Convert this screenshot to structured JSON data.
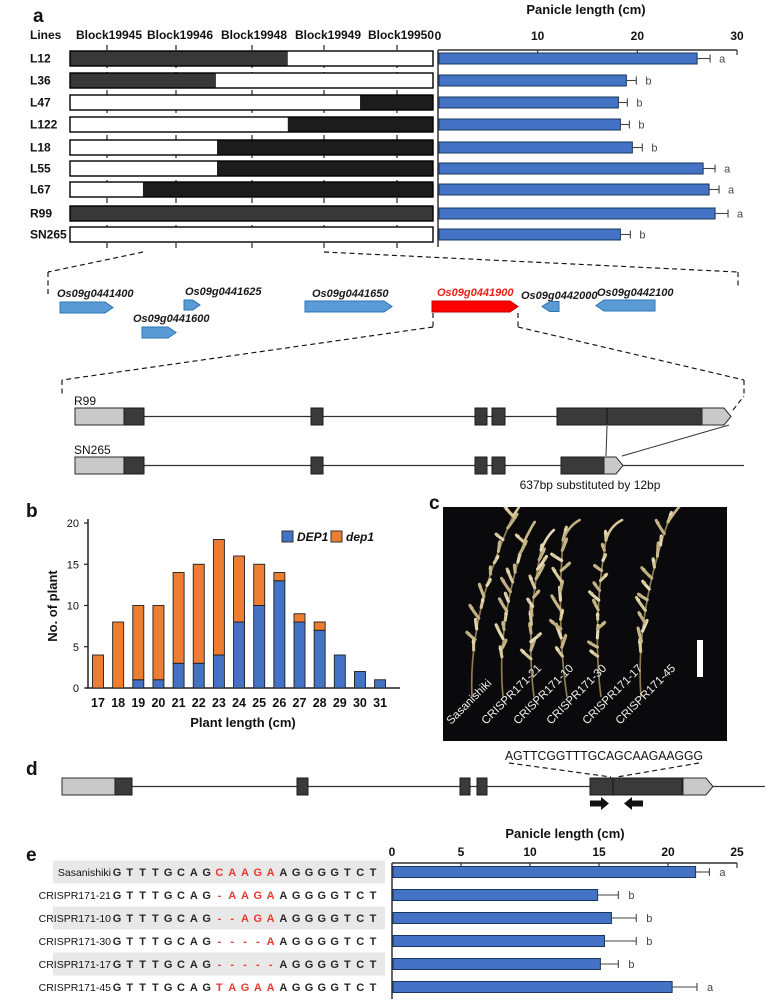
{
  "panels": {
    "a": {
      "label": "a",
      "lines_header": "Lines",
      "blocks": [
        "Block19945",
        "Block19946",
        "Block19948",
        "Block19949",
        "Block19950"
      ],
      "lines": [
        {
          "name": "L12",
          "dark": [
            0,
            0.6
          ],
          "tone": "gray"
        },
        {
          "name": "L36",
          "dark": [
            0,
            0.402
          ],
          "tone": "gray"
        },
        {
          "name": "L47",
          "dark": [
            0.799,
            1
          ],
          "tone": "black"
        },
        {
          "name": "L122",
          "dark": [
            0.6,
            1
          ],
          "tone": "black"
        },
        {
          "name": "L18",
          "dark": [
            0.405,
            1
          ],
          "tone": "black"
        },
        {
          "name": "L55",
          "dark": [
            0.405,
            1
          ],
          "tone": "black"
        },
        {
          "name": "L67",
          "dark": [
            0.201,
            1
          ],
          "tone": "black"
        },
        {
          "name": "R99",
          "dark": [
            0,
            1
          ],
          "tone": "gray"
        },
        {
          "name": "SN265",
          "dark": null,
          "tone": "none"
        }
      ]
    },
    "gene_row": {
      "genes": [
        {
          "id": "Os09g0441400",
          "dir": "right",
          "highlight": false
        },
        {
          "id": "Os09g0441600",
          "dir": "right",
          "highlight": false
        },
        {
          "id": "Os09g0441625",
          "dir": "right",
          "highlight": false
        },
        {
          "id": "Os09g0441650",
          "dir": "right",
          "highlight": false
        },
        {
          "id": "Os09g0441900",
          "dir": "right",
          "highlight": true
        },
        {
          "id": "Os09g0442000",
          "dir": "left",
          "highlight": false
        },
        {
          "id": "Os09g0442100",
          "dir": "left",
          "highlight": false
        }
      ]
    },
    "structures": {
      "r99_label": "R99",
      "sn265_label": "SN265",
      "substitution_note": "637bp substituted by 12bp"
    },
    "b": {
      "label": "b"
    },
    "c": {
      "label": "c",
      "photo_labels": [
        "Sasanishiki",
        "CRISPR171-21",
        "CRISPR171-10",
        "CRISPR171-30",
        "CRISPR171-17",
        "CRISPR171-45"
      ]
    },
    "d": {
      "label": "d",
      "guide_sequence": "AGTTCGGTTTGCAGCAAGAAGGG"
    },
    "e": {
      "label": "e",
      "prefix": "GTTTGCAG",
      "suffix": "AGGGGTCT",
      "rows": [
        {
          "name": "Sasanishiki",
          "mid": "CAAGA",
          "shaded": true
        },
        {
          "name": "CRISPR171-21",
          "mid": "-AAGA",
          "shaded": false
        },
        {
          "name": "CRISPR171-10",
          "mid": "--AGA",
          "shaded": true
        },
        {
          "name": "CRISPR171-30",
          "mid": "----A",
          "shaded": false
        },
        {
          "name": "CRISPR171-17",
          "mid": "-----",
          "shaded": true
        },
        {
          "name": "CRISPR171-45",
          "mid": "TAGAA",
          "shaded": false
        }
      ]
    }
  },
  "chart_data": [
    {
      "type": "bar",
      "orientation": "horizontal",
      "title": "Panicle length (cm)",
      "categories": [
        "L12",
        "L36",
        "L47",
        "L122",
        "L18",
        "L55",
        "L67",
        "R99",
        "SN265"
      ],
      "values": [
        26.0,
        18.9,
        18.1,
        18.3,
        19.5,
        26.6,
        27.2,
        27.8,
        18.3
      ],
      "errors": [
        1.3,
        1.0,
        0.9,
        0.9,
        1.0,
        1.2,
        1.0,
        1.3,
        1.0
      ],
      "sig_letters": [
        "a",
        "b",
        "b",
        "b",
        "b",
        "a",
        "a",
        "a",
        "b"
      ],
      "xlim": [
        0,
        30
      ],
      "xticks": [
        0,
        10,
        20,
        30
      ],
      "bar_color": "#4472C4"
    },
    {
      "type": "stacked-bar",
      "title": "",
      "xlabel": "Plant length (cm)",
      "ylabel": "No. of plant",
      "categories": [
        17,
        18,
        19,
        20,
        21,
        22,
        23,
        24,
        25,
        26,
        27,
        28,
        29,
        30,
        31
      ],
      "series": [
        {
          "name": "DEP1",
          "color": "#4472C4",
          "values": [
            0,
            0,
            1,
            1,
            3,
            3,
            4,
            8,
            10,
            13,
            8,
            7,
            4,
            2,
            1
          ]
        },
        {
          "name": "dep1",
          "color": "#ED7D31",
          "values": [
            4,
            8,
            9,
            9,
            11,
            12,
            14,
            8,
            5,
            1,
            1,
            1,
            0,
            0,
            0
          ]
        }
      ],
      "ylim": [
        0,
        20
      ],
      "yticks": [
        0,
        5,
        10,
        15,
        20
      ],
      "legend_position": "top-right"
    },
    {
      "type": "bar",
      "orientation": "horizontal",
      "title": "Panicle length (cm)",
      "categories": [
        "Sasanishiki",
        "CRISPR171-21",
        "CRISPR171-10",
        "CRISPR171-30",
        "CRISPR171-17",
        "CRISPR171-45"
      ],
      "values": [
        22.0,
        14.9,
        15.9,
        15.4,
        15.1,
        20.3
      ],
      "errors": [
        1.0,
        1.5,
        1.8,
        2.3,
        1.3,
        1.8
      ],
      "sig_letters": [
        "a",
        "b",
        "b",
        "b",
        "b",
        "a"
      ],
      "xlim": [
        0,
        25
      ],
      "xticks": [
        0,
        5,
        10,
        15,
        20,
        25
      ],
      "bar_color": "#4472C4"
    }
  ],
  "colors": {
    "bar_blue": "#4472C4",
    "bar_blue_border": "#17375E",
    "orange": "#ED7D31",
    "gene_blue": "#5B9BD5",
    "gene_blue_border": "#2E74B5",
    "highlight_red": "#E8201A",
    "exon_dark": "#3a3a3a",
    "utr_light": "#c9c9c9",
    "genotype_gray": "#383838",
    "genotype_black": "#1c1c1c"
  }
}
